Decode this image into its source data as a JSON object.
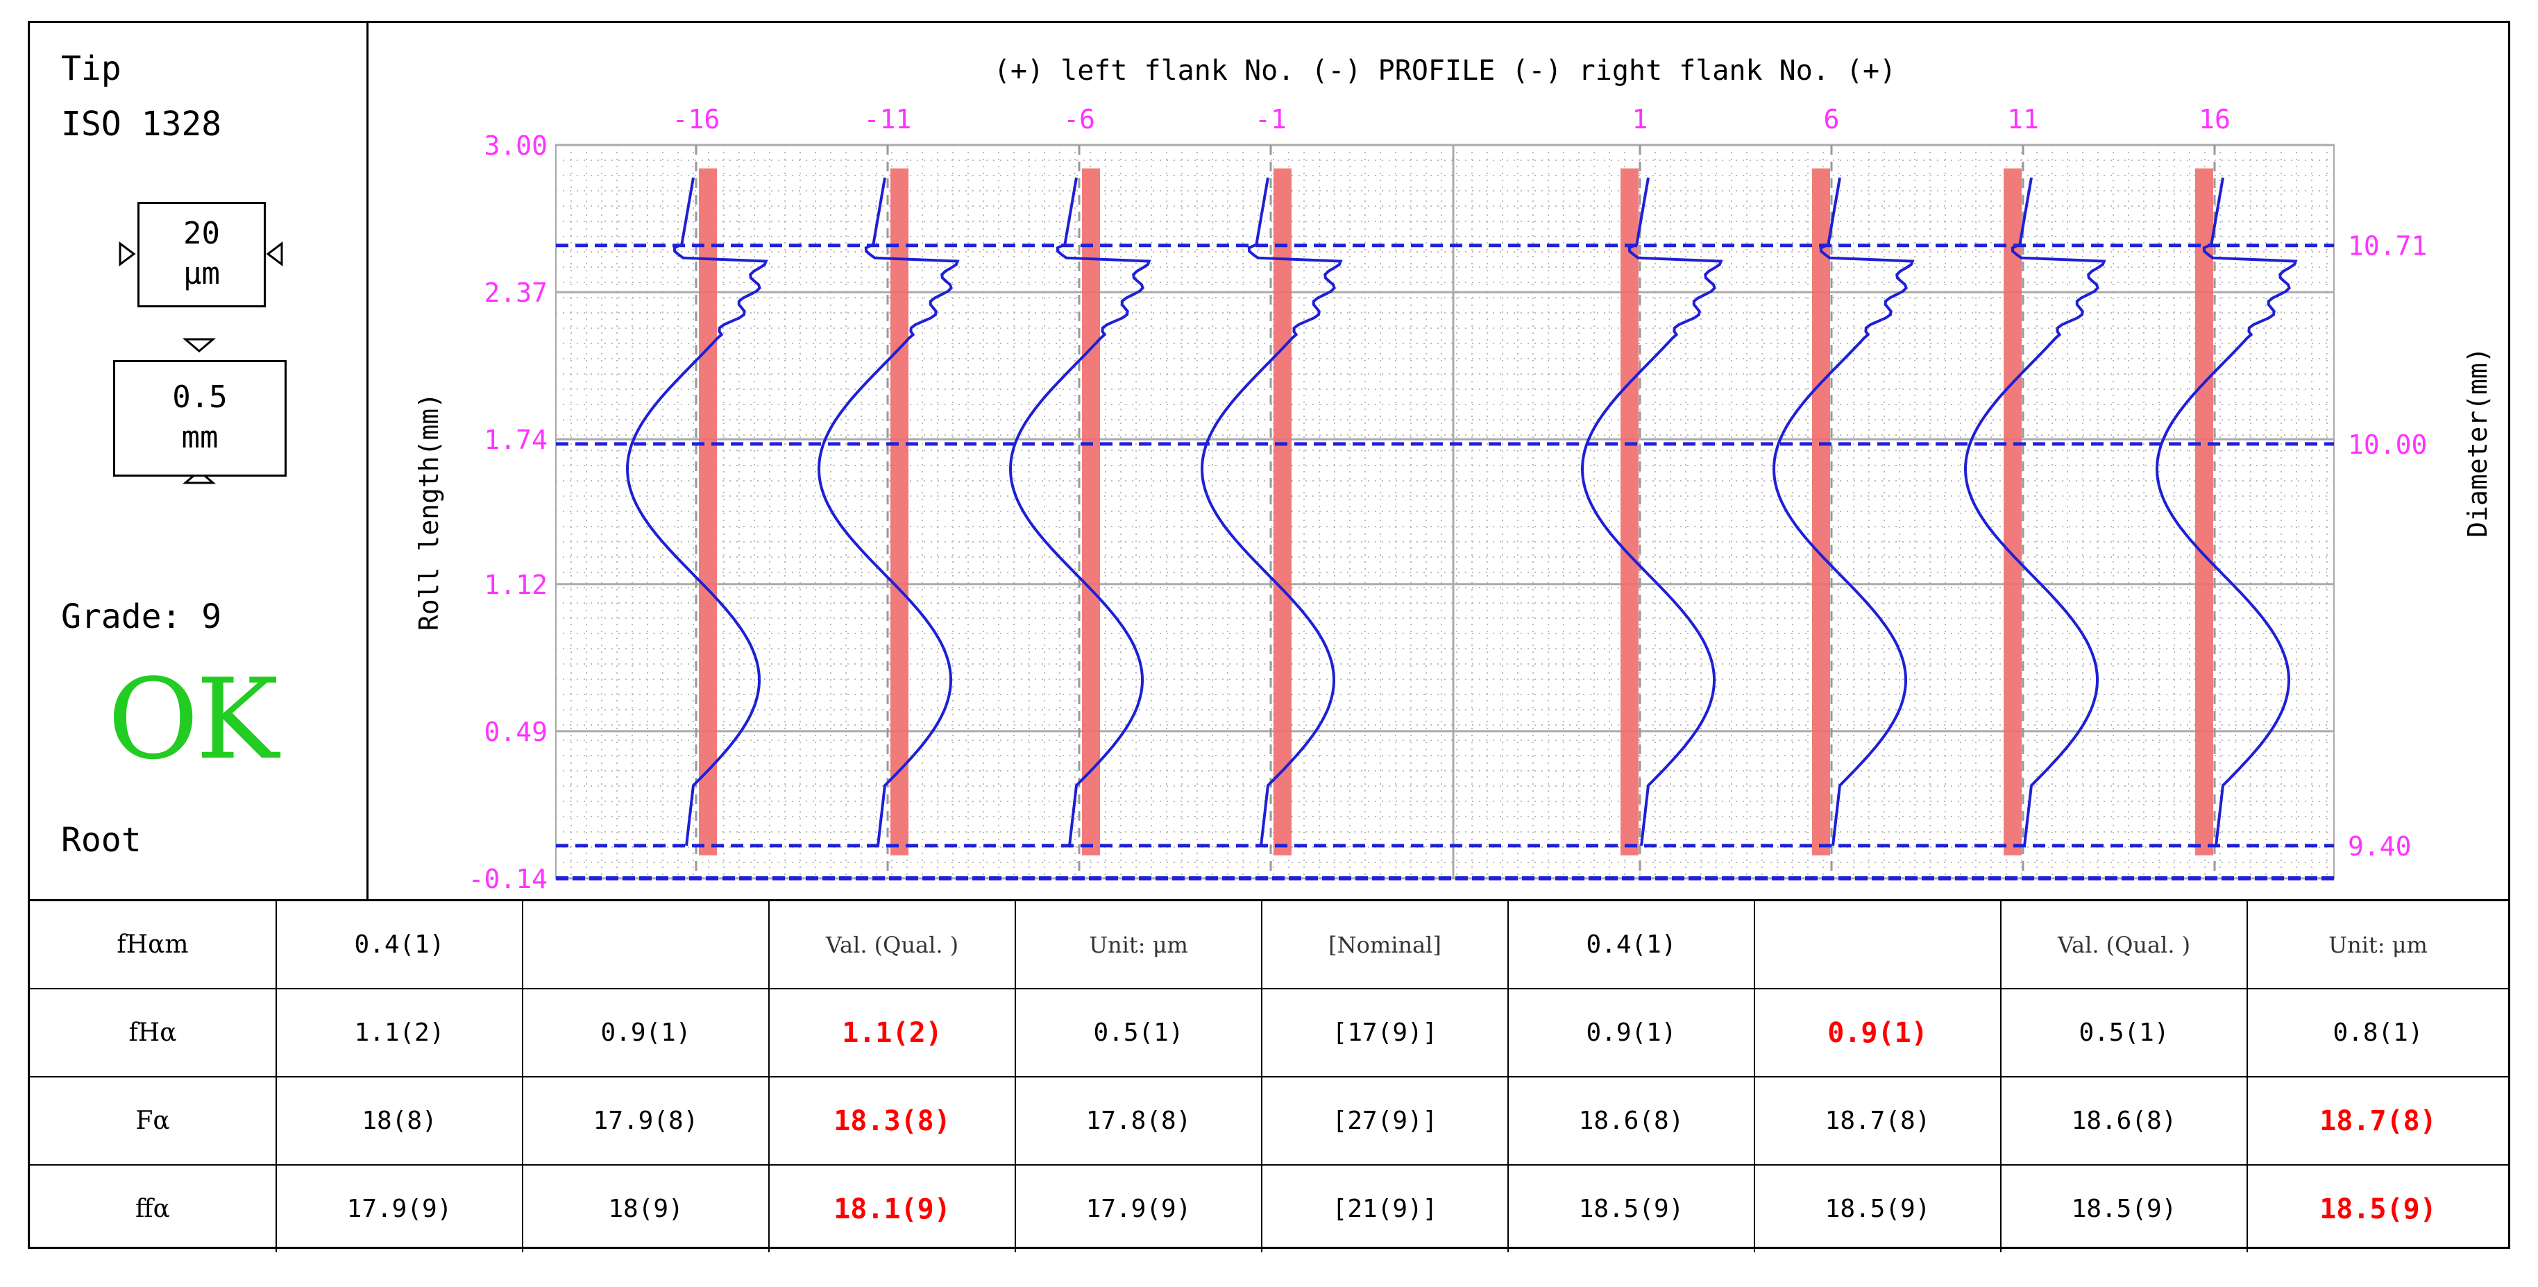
{
  "left_panel": {
    "tip_label": "Tip",
    "standard": "ISO 1328",
    "scale_vertical_value": "20",
    "scale_vertical_unit": "μm",
    "scale_horizontal_value": "0.5",
    "scale_horizontal_unit": "mm",
    "grade": "Grade: 9",
    "status": "OK",
    "root_label": "Root"
  },
  "chart_data": {
    "type": "line",
    "title": "(+) left flank No. (-) PROFILE (-) right flank No. (+)",
    "ylabel": "Roll length(mm)",
    "y2label": "Diameter(mm)",
    "ylim": [
      -0.14,
      3.0
    ],
    "yticks": [
      "3.00",
      "2.37",
      "1.74",
      "1.12",
      "0.49",
      "-0.14"
    ],
    "yticks_values": [
      3.0,
      2.37,
      1.74,
      1.12,
      0.49,
      -0.14
    ],
    "y2ticks": [
      {
        "label": "10.71",
        "roll": 2.57
      },
      {
        "label": "10.00",
        "roll": 1.72
      },
      {
        "label": "9.40",
        "roll": 0.0
      }
    ],
    "flank_labels": [
      "-16",
      "-11",
      "-6",
      "-1",
      "1",
      "6",
      "11",
      "16"
    ],
    "tolerance_band": {
      "roll_start": 0.0,
      "roll_end": 2.9,
      "color": "#f07070"
    },
    "curve_color": "#1f1fd6",
    "ref_color": "#2020d8",
    "label_color": "#ff33ff",
    "series": [
      {
        "flank": "-16",
        "side": "left"
      },
      {
        "flank": "-11",
        "side": "left"
      },
      {
        "flank": "-6",
        "side": "left"
      },
      {
        "flank": "-1",
        "side": "left"
      },
      {
        "flank": "1",
        "side": "right"
      },
      {
        "flank": "6",
        "side": "right"
      },
      {
        "flank": "11",
        "side": "right"
      },
      {
        "flank": "16",
        "side": "right"
      }
    ]
  },
  "table": {
    "rows": [
      {
        "label": "fHαm",
        "cells": [
          {
            "t": "0.4(1)"
          },
          {
            "t": ""
          },
          {
            "t": "Val. (Qual. )",
            "small": true
          },
          {
            "t": "Unit: μm",
            "small": true
          },
          {
            "t": "[Nominal]",
            "small": true
          },
          {
            "t": "0.4(1)"
          },
          {
            "t": ""
          },
          {
            "t": "Val. (Qual. )",
            "small": true
          },
          {
            "t": "Unit: μm",
            "small": true
          }
        ]
      },
      {
        "label": "fHα",
        "cells": [
          {
            "t": "1.1(2)"
          },
          {
            "t": "0.9(1)"
          },
          {
            "t": "1.1(2)",
            "hl": true
          },
          {
            "t": "0.5(1)"
          },
          {
            "t": "[17(9)]"
          },
          {
            "t": "0.9(1)"
          },
          {
            "t": "0.9(1)",
            "hl": true
          },
          {
            "t": "0.5(1)"
          },
          {
            "t": "0.8(1)"
          }
        ]
      },
      {
        "label": "Fα",
        "cells": [
          {
            "t": "18(8)"
          },
          {
            "t": "17.9(8)"
          },
          {
            "t": "18.3(8)",
            "hl": true
          },
          {
            "t": "17.8(8)"
          },
          {
            "t": "[27(9)]"
          },
          {
            "t": "18.6(8)"
          },
          {
            "t": "18.7(8)"
          },
          {
            "t": "18.6(8)"
          },
          {
            "t": "18.7(8)",
            "hl": true
          }
        ]
      },
      {
        "label": "ffα",
        "cells": [
          {
            "t": "17.9(9)"
          },
          {
            "t": "18(9)"
          },
          {
            "t": "18.1(9)",
            "hl": true
          },
          {
            "t": "17.9(9)"
          },
          {
            "t": "[21(9)]"
          },
          {
            "t": "18.5(9)"
          },
          {
            "t": "18.5(9)"
          },
          {
            "t": "18.5(9)"
          },
          {
            "t": "18.5(9)",
            "hl": true
          }
        ]
      }
    ]
  }
}
